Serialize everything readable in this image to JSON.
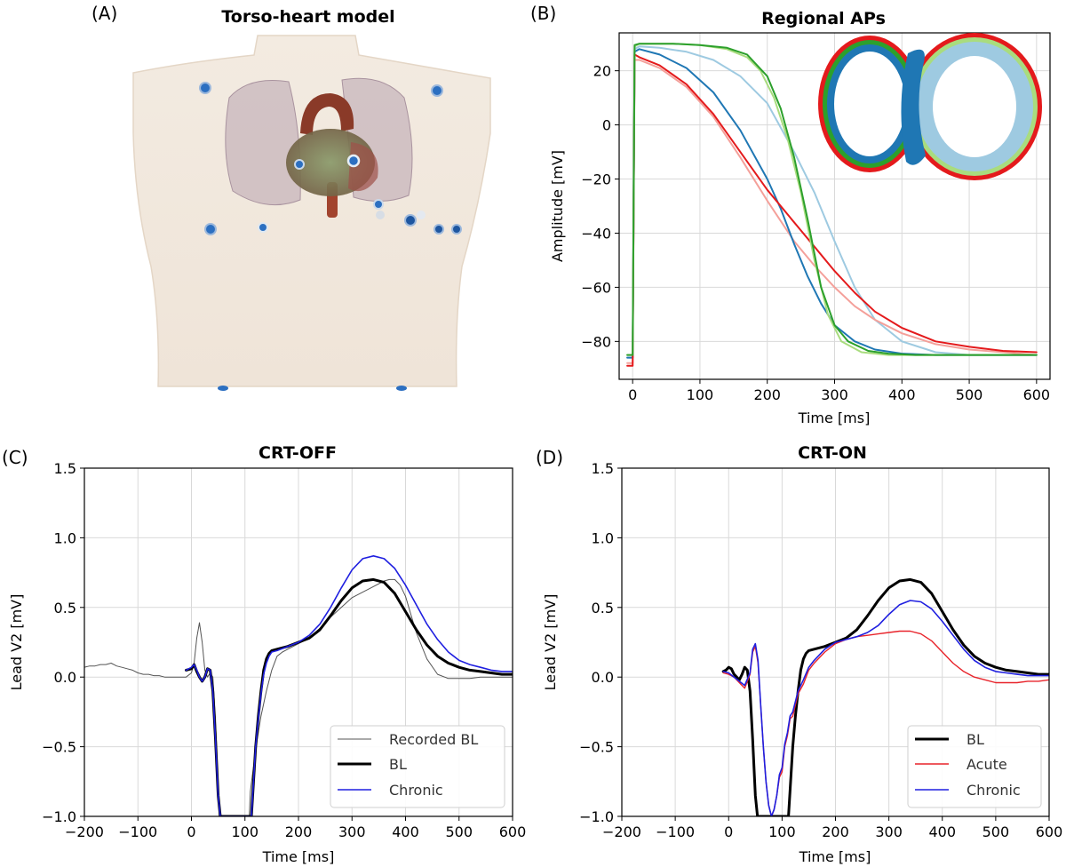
{
  "panel_labels": {
    "a": "(A)",
    "b": "(B)",
    "c": "(C)",
    "d": "(D)"
  },
  "torso_panel": {
    "title": "Torso-heart model"
  },
  "colors": {
    "recorded": "#555555",
    "bl": "#000000",
    "chronic": "#1f1fe0",
    "acute": "#e8232a",
    "ap_blue": "#1f77b4",
    "ap_lightblue": "#9ecae1",
    "ap_green": "#2ca02c",
    "ap_lightgreen": "#a9dc7e",
    "ap_red": "#e41a1c",
    "ap_pink": "#f4a09a"
  },
  "chart_data": [
    {
      "id": "b",
      "type": "line",
      "title": "Regional APs",
      "xlabel": "Time [ms]",
      "ylabel": "Amplitude [mV]",
      "xlim": [
        -20,
        620
      ],
      "ylim": [
        -94,
        34
      ],
      "xticks": [
        0,
        100,
        200,
        300,
        400,
        500,
        600
      ],
      "yticks": [
        20,
        0,
        -20,
        -40,
        -60,
        -80
      ],
      "yticklabels": [
        "20",
        "0",
        "−20",
        "−40",
        "−60",
        "−80"
      ],
      "grid": true,
      "series": [
        {
          "color": "#9ecae1",
          "x": [
            -8,
            0,
            3,
            10,
            40,
            80,
            120,
            160,
            200,
            240,
            270,
            300,
            330,
            360,
            400,
            450,
            500,
            550,
            600
          ],
          "y": [
            -86,
            -86,
            28,
            29,
            28.5,
            27,
            24,
            18,
            8,
            -10,
            -25,
            -43,
            -60,
            -72,
            -80,
            -84,
            -85,
            -85,
            -85
          ]
        },
        {
          "color": "#f4a09a",
          "x": [
            -8,
            0,
            3,
            10,
            40,
            80,
            120,
            160,
            200,
            240,
            270,
            300,
            330,
            360,
            400,
            450,
            500,
            550,
            600
          ],
          "y": [
            -88,
            -88,
            24,
            24,
            21,
            14,
            3,
            -12,
            -28,
            -43,
            -52,
            -60,
            -67,
            -72,
            -77,
            -81,
            -83,
            -84,
            -85
          ]
        },
        {
          "color": "#1f77b4",
          "x": [
            -8,
            0,
            3,
            10,
            40,
            80,
            120,
            160,
            200,
            220,
            240,
            260,
            280,
            300,
            330,
            360,
            400,
            450,
            500,
            550,
            600
          ],
          "y": [
            -86,
            -86,
            27,
            28,
            26,
            21,
            12,
            -2,
            -20,
            -31,
            -44,
            -56,
            -66,
            -74,
            -80,
            -83,
            -84.5,
            -85,
            -85,
            -85,
            -85
          ]
        },
        {
          "color": "#e41a1c",
          "x": [
            -8,
            0,
            3,
            10,
            40,
            80,
            120,
            160,
            200,
            240,
            270,
            300,
            330,
            360,
            400,
            450,
            500,
            550,
            600
          ],
          "y": [
            -89,
            -89,
            26,
            25,
            22,
            15,
            4,
            -10,
            -24,
            -36,
            -45,
            -54,
            -62,
            -69,
            -75,
            -80,
            -82,
            -83.5,
            -84
          ]
        },
        {
          "color": "#a9dc7e",
          "x": [
            -8,
            0,
            3,
            10,
            60,
            100,
            140,
            170,
            190,
            210,
            230,
            250,
            270,
            290,
            310,
            340,
            380,
            420,
            500,
            600
          ],
          "y": [
            -85,
            -85,
            29,
            30,
            30,
            29.5,
            28,
            25,
            20,
            10,
            -5,
            -25,
            -50,
            -70,
            -80,
            -84,
            -85,
            -85,
            -85,
            -85
          ]
        },
        {
          "color": "#2ca02c",
          "x": [
            -8,
            0,
            3,
            10,
            60,
            100,
            140,
            170,
            200,
            220,
            240,
            260,
            280,
            300,
            320,
            350,
            380,
            420,
            500,
            600
          ],
          "y": [
            -85,
            -85,
            29.5,
            30,
            30,
            29.5,
            28.5,
            26,
            18,
            6,
            -12,
            -35,
            -60,
            -74,
            -80,
            -83.5,
            -84.5,
            -85,
            -85,
            -85
          ]
        }
      ]
    },
    {
      "id": "c",
      "type": "line",
      "title": "CRT-OFF",
      "xlabel": "Time [ms]",
      "ylabel": "Lead V2 [mV]",
      "xlim": [
        -200,
        600
      ],
      "ylim": [
        -1.0,
        1.5
      ],
      "xticks": [
        -200,
        -100,
        0,
        100,
        200,
        300,
        400,
        500,
        600
      ],
      "xticklabels": [
        "−200",
        "−100",
        "0",
        "100",
        "200",
        "300",
        "400",
        "500",
        "600"
      ],
      "yticks": [
        1.5,
        1.0,
        0.5,
        0.0,
        -0.5,
        -1.0
      ],
      "yticklabels": [
        "1.5",
        "1.0",
        "0.5",
        "0.0",
        "−0.5",
        "−1.0"
      ],
      "grid": true,
      "legend": "bottom-right",
      "series": [
        {
          "name": "Recorded BL",
          "color": "#555555",
          "width": 1,
          "x": [
            -200,
            -190,
            -180,
            -170,
            -160,
            -150,
            -140,
            -130,
            -120,
            -110,
            -100,
            -90,
            -80,
            -70,
            -60,
            -50,
            -40,
            -30,
            -20,
            -10,
            0,
            5,
            10,
            15,
            20,
            25,
            30,
            35,
            40,
            45,
            50,
            52,
            108,
            110,
            120,
            130,
            140,
            150,
            160,
            170,
            180,
            200,
            220,
            240,
            260,
            280,
            300,
            320,
            340,
            360,
            370,
            380,
            390,
            400,
            410,
            420,
            440,
            460,
            480,
            500,
            520,
            540,
            560,
            580,
            600
          ],
          "y": [
            0.07,
            0.08,
            0.08,
            0.09,
            0.09,
            0.1,
            0.08,
            0.07,
            0.06,
            0.05,
            0.03,
            0.02,
            0.02,
            0.01,
            0.01,
            0.0,
            0.0,
            0.0,
            0.0,
            0.0,
            0.03,
            0.1,
            0.28,
            0.39,
            0.25,
            0.05,
            0.0,
            0.03,
            0.0,
            -0.3,
            -0.8,
            -1.0,
            -1.0,
            -0.82,
            -0.52,
            -0.28,
            -0.1,
            0.05,
            0.15,
            0.18,
            0.2,
            0.24,
            0.28,
            0.35,
            0.43,
            0.5,
            0.57,
            0.61,
            0.65,
            0.69,
            0.7,
            0.7,
            0.66,
            0.58,
            0.45,
            0.32,
            0.13,
            0.02,
            -0.01,
            -0.01,
            -0.01,
            0.0,
            0.0,
            0.0,
            0.0
          ]
        },
        {
          "name": "BL",
          "color": "#000000",
          "width": 3,
          "x": [
            -10,
            0,
            5,
            10,
            15,
            20,
            25,
            30,
            35,
            40,
            45,
            50,
            54,
            112,
            116,
            120,
            125,
            130,
            135,
            140,
            145,
            150,
            160,
            180,
            200,
            220,
            240,
            260,
            280,
            300,
            320,
            340,
            360,
            380,
            400,
            420,
            440,
            460,
            480,
            500,
            520,
            540,
            560,
            580,
            600
          ],
          "y": [
            0.05,
            0.06,
            0.09,
            0.04,
            0.0,
            -0.03,
            0.0,
            0.06,
            0.05,
            -0.1,
            -0.45,
            -0.85,
            -1.0,
            -1.0,
            -0.75,
            -0.5,
            -0.28,
            -0.1,
            0.05,
            0.13,
            0.17,
            0.19,
            0.2,
            0.22,
            0.25,
            0.28,
            0.34,
            0.44,
            0.55,
            0.64,
            0.69,
            0.7,
            0.68,
            0.6,
            0.47,
            0.34,
            0.23,
            0.15,
            0.1,
            0.07,
            0.05,
            0.04,
            0.03,
            0.02,
            0.02
          ]
        },
        {
          "name": "Chronic",
          "color": "#1f1fe0",
          "width": 1.6,
          "x": [
            -10,
            0,
            5,
            10,
            15,
            20,
            25,
            30,
            35,
            40,
            45,
            50,
            54,
            112,
            116,
            120,
            125,
            130,
            135,
            140,
            145,
            150,
            160,
            180,
            200,
            220,
            240,
            260,
            280,
            300,
            320,
            340,
            360,
            380,
            400,
            420,
            440,
            460,
            480,
            500,
            520,
            540,
            560,
            580,
            600
          ],
          "y": [
            0.05,
            0.07,
            0.09,
            0.05,
            0.0,
            -0.03,
            0.0,
            0.06,
            0.05,
            -0.1,
            -0.45,
            -0.85,
            -1.0,
            -1.0,
            -0.75,
            -0.5,
            -0.3,
            -0.12,
            0.02,
            0.1,
            0.15,
            0.18,
            0.19,
            0.22,
            0.25,
            0.3,
            0.38,
            0.5,
            0.64,
            0.77,
            0.85,
            0.87,
            0.85,
            0.78,
            0.66,
            0.52,
            0.38,
            0.27,
            0.18,
            0.12,
            0.09,
            0.07,
            0.05,
            0.04,
            0.04
          ]
        }
      ]
    },
    {
      "id": "d",
      "type": "line",
      "title": "CRT-ON",
      "xlabel": "Time [ms]",
      "ylabel": "Lead V2 [mV]",
      "xlim": [
        -200,
        600
      ],
      "ylim": [
        -1.0,
        1.5
      ],
      "xticks": [
        -200,
        -100,
        0,
        100,
        200,
        300,
        400,
        500,
        600
      ],
      "xticklabels": [
        "−200",
        "−100",
        "0",
        "100",
        "200",
        "300",
        "400",
        "500",
        "600"
      ],
      "yticks": [
        1.5,
        1.0,
        0.5,
        0.0,
        -0.5,
        -1.0
      ],
      "yticklabels": [
        "1.5",
        "1.0",
        "0.5",
        "0.0",
        "−0.5",
        "−1.0"
      ],
      "grid": true,
      "legend": "bottom-right",
      "series": [
        {
          "name": "BL",
          "color": "#000000",
          "width": 3,
          "x": [
            -10,
            -5,
            0,
            5,
            10,
            15,
            20,
            25,
            30,
            35,
            40,
            45,
            50,
            54,
            112,
            116,
            120,
            125,
            130,
            135,
            140,
            145,
            150,
            160,
            180,
            200,
            220,
            240,
            260,
            280,
            300,
            320,
            340,
            360,
            380,
            400,
            420,
            440,
            460,
            480,
            500,
            520,
            540,
            560,
            580,
            600
          ],
          "y": [
            0.04,
            0.05,
            0.07,
            0.06,
            0.02,
            0.0,
            -0.02,
            0.02,
            0.07,
            0.05,
            -0.1,
            -0.45,
            -0.85,
            -1.0,
            -1.0,
            -0.75,
            -0.5,
            -0.28,
            -0.1,
            0.05,
            0.13,
            0.17,
            0.19,
            0.2,
            0.22,
            0.25,
            0.28,
            0.34,
            0.44,
            0.55,
            0.64,
            0.69,
            0.7,
            0.68,
            0.6,
            0.47,
            0.34,
            0.23,
            0.15,
            0.1,
            0.07,
            0.05,
            0.04,
            0.03,
            0.02,
            0.02
          ]
        },
        {
          "name": "Acute",
          "color": "#e8232a",
          "width": 1.4,
          "x": [
            -10,
            0,
            10,
            20,
            30,
            40,
            45,
            50,
            55,
            60,
            65,
            70,
            75,
            80,
            85,
            90,
            95,
            100,
            105,
            110,
            115,
            120,
            130,
            140,
            150,
            160,
            180,
            200,
            220,
            240,
            260,
            280,
            300,
            320,
            340,
            360,
            380,
            400,
            420,
            440,
            460,
            480,
            500,
            520,
            540,
            560,
            580,
            600
          ],
          "y": [
            0.03,
            0.02,
            0.0,
            -0.04,
            -0.08,
            0.02,
            0.18,
            0.22,
            0.1,
            -0.2,
            -0.5,
            -0.75,
            -0.92,
            -1.0,
            -0.95,
            -0.85,
            -0.72,
            -0.68,
            -0.5,
            -0.42,
            -0.3,
            -0.28,
            -0.12,
            -0.05,
            0.05,
            0.1,
            0.18,
            0.24,
            0.27,
            0.29,
            0.3,
            0.31,
            0.32,
            0.33,
            0.33,
            0.31,
            0.26,
            0.18,
            0.1,
            0.04,
            0.0,
            -0.02,
            -0.04,
            -0.04,
            -0.04,
            -0.03,
            -0.03,
            -0.02
          ]
        },
        {
          "name": "Chronic",
          "color": "#1f1fe0",
          "width": 1.6,
          "x": [
            -10,
            0,
            10,
            20,
            30,
            40,
            45,
            50,
            55,
            60,
            65,
            70,
            75,
            80,
            85,
            90,
            95,
            100,
            105,
            110,
            115,
            120,
            130,
            140,
            150,
            160,
            180,
            200,
            220,
            240,
            260,
            280,
            300,
            320,
            340,
            360,
            380,
            400,
            420,
            440,
            460,
            480,
            500,
            520,
            540,
            560,
            580,
            600
          ],
          "y": [
            0.04,
            0.03,
            0.0,
            -0.03,
            -0.06,
            0.03,
            0.2,
            0.24,
            0.12,
            -0.2,
            -0.5,
            -0.75,
            -0.92,
            -1.0,
            -0.95,
            -0.85,
            -0.7,
            -0.65,
            -0.48,
            -0.4,
            -0.28,
            -0.25,
            -0.1,
            -0.02,
            0.07,
            0.12,
            0.2,
            0.25,
            0.27,
            0.29,
            0.32,
            0.37,
            0.45,
            0.52,
            0.55,
            0.54,
            0.49,
            0.4,
            0.3,
            0.2,
            0.12,
            0.07,
            0.04,
            0.03,
            0.02,
            0.01,
            0.01,
            0.01
          ]
        }
      ]
    }
  ]
}
